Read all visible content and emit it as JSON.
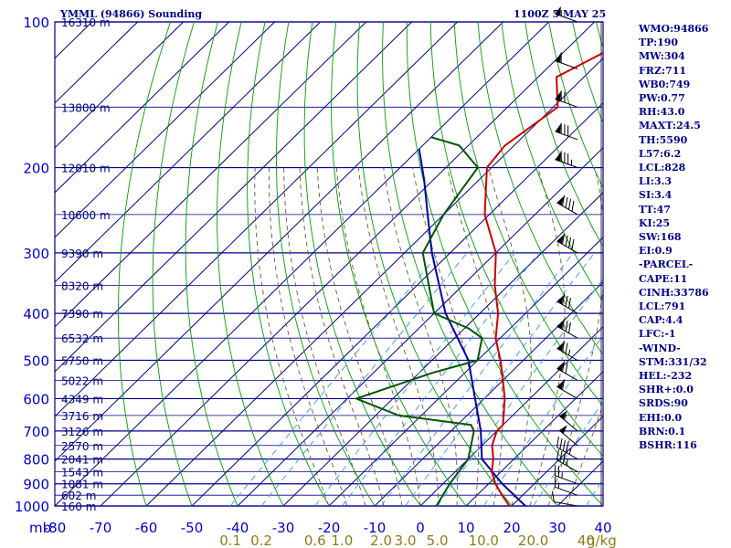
{
  "header": {
    "station": "YMML (94866) Sounding",
    "time": "1100Z  5 MAY 25"
  },
  "indices": [
    "WMO:94866",
    "TP:190",
    "MW:304",
    "FRZ:711",
    "WB0:749",
    "PW:0.77",
    "RH:43.0",
    "MAXT:24.5",
    "TH:5590",
    "L57:6.2",
    "LCL:828",
    "LI:3.3",
    "SI:3.4",
    "TT:47",
    "KI:25",
    "SW:168",
    "EI:0.9",
    "-PARCEL-",
    "CAPE:11",
    "CINH:33786",
    "LCL:791",
    "CAP:4.4",
    "LFC:-1",
    "-WIND-",
    "STM:331/32",
    "HEL:-232",
    "SHR+:0.0",
    "SRDS:90",
    "EHI:0.0",
    "BRN:0.1",
    "BSHR:116"
  ],
  "colors": {
    "grid": "#00008b",
    "dry_adiabat": "#00a000",
    "moist_adiabat": "#6b5a2a",
    "mixing_ratio": "#3399dd",
    "temperature": "#cc0000",
    "dewpoint": "#005500",
    "parcel": "#0000aa",
    "wind_barb": "#000000"
  },
  "chart_data": {
    "type": "skew-t log-p sounding",
    "pressure_unit_label": "mb",
    "pressure_levels": [
      100,
      200,
      300,
      400,
      500,
      600,
      700,
      800,
      900,
      1000
    ],
    "pressure_ticks": [
      "100",
      "200",
      "300",
      "400",
      "500",
      "600",
      "700",
      "800",
      "900",
      "1000"
    ],
    "pressure_range_mb": [
      100,
      1000
    ],
    "temperature_ticks": [
      "-80",
      "-70",
      "-60",
      "-50",
      "-40",
      "-30",
      "-20",
      "-10",
      "0",
      "10",
      "20",
      "30",
      "40"
    ],
    "temperature_values": [
      -80,
      -70,
      -60,
      -50,
      -40,
      -30,
      -20,
      -10,
      0,
      10,
      20,
      30,
      40
    ],
    "temperature_range_c": [
      -80,
      40
    ],
    "height_labels": [
      {
        "p": 100,
        "label": "16310 m"
      },
      {
        "p": 150,
        "label": "13800 m"
      },
      {
        "p": 200,
        "label": "12010 m"
      },
      {
        "p": 250,
        "label": "10600 m"
      },
      {
        "p": 300,
        "label": "9390 m"
      },
      {
        "p": 350,
        "label": "8320 m"
      },
      {
        "p": 400,
        "label": "7390 m"
      },
      {
        "p": 450,
        "label": "6532 m"
      },
      {
        "p": 500,
        "label": "5750 m"
      },
      {
        "p": 550,
        "label": "5022 m"
      },
      {
        "p": 600,
        "label": "4349 m"
      },
      {
        "p": 650,
        "label": "3716 m"
      },
      {
        "p": 700,
        "label": "3126 m"
      },
      {
        "p": 750,
        "label": "2570 m"
      },
      {
        "p": 800,
        "label": "2041 m"
      },
      {
        "p": 850,
        "label": "1543 m"
      },
      {
        "p": 900,
        "label": "1081 m"
      },
      {
        "p": 950,
        "label": "602 m"
      },
      {
        "p": 1000,
        "label": "160 m"
      }
    ],
    "mixing_ratio_labels": [
      "0.1",
      "0.2",
      "0.6",
      "1.0",
      "2.0",
      "3.0",
      "5.0",
      "10.0",
      "20.0",
      "40"
    ],
    "mixing_ratio_unit": "g/kg",
    "temperature_profile": [
      {
        "p": 1000,
        "t": 19.5
      },
      {
        "p": 950,
        "t": 15.5
      },
      {
        "p": 900,
        "t": 11.5
      },
      {
        "p": 850,
        "t": 8.0
      },
      {
        "p": 800,
        "t": 5.5
      },
      {
        "p": 750,
        "t": 2.2
      },
      {
        "p": 700,
        "t": 0.0
      },
      {
        "p": 680,
        "t": 0.0
      },
      {
        "p": 650,
        "t": -2.0
      },
      {
        "p": 600,
        "t": -5.5
      },
      {
        "p": 550,
        "t": -10.0
      },
      {
        "p": 500,
        "t": -15.0
      },
      {
        "p": 450,
        "t": -21.0
      },
      {
        "p": 400,
        "t": -26.0
      },
      {
        "p": 350,
        "t": -33.0
      },
      {
        "p": 300,
        "t": -40.0
      },
      {
        "p": 250,
        "t": -51.0
      },
      {
        "p": 200,
        "t": -61.0
      },
      {
        "p": 180,
        "t": -62.0
      },
      {
        "p": 150,
        "t": -59.0
      },
      {
        "p": 130,
        "t": -66.0
      },
      {
        "p": 110,
        "t": -59.0
      },
      {
        "p": 100,
        "t": -58.5
      }
    ],
    "dewpoint_profile": [
      {
        "p": 1000,
        "t": 3.5
      },
      {
        "p": 900,
        "t": 1.5
      },
      {
        "p": 800,
        "t": 0.0
      },
      {
        "p": 700,
        "t": -5.0
      },
      {
        "p": 680,
        "t": -7.0
      },
      {
        "p": 650,
        "t": -25.0
      },
      {
        "p": 600,
        "t": -38.0
      },
      {
        "p": 530,
        "t": -27.0
      },
      {
        "p": 500,
        "t": -20.0
      },
      {
        "p": 450,
        "t": -24.0
      },
      {
        "p": 430,
        "t": -29.0
      },
      {
        "p": 400,
        "t": -40.0
      },
      {
        "p": 300,
        "t": -56.0
      },
      {
        "p": 250,
        "t": -60.0
      },
      {
        "p": 200,
        "t": -63.0
      },
      {
        "p": 180,
        "t": -72.0
      },
      {
        "p": 173,
        "t": -80.0
      }
    ],
    "parcel_profile": [
      {
        "p": 1000,
        "t": 23.0
      },
      {
        "p": 900,
        "t": 13.0
      },
      {
        "p": 800,
        "t": 3.0
      },
      {
        "p": 700,
        "t": -3.5
      },
      {
        "p": 600,
        "t": -12.0
      },
      {
        "p": 500,
        "t": -22.0
      },
      {
        "p": 400,
        "t": -37.5
      },
      {
        "p": 300,
        "t": -54.0
      },
      {
        "p": 250,
        "t": -63.5
      },
      {
        "p": 212,
        "t": -72.0
      },
      {
        "p": 183,
        "t": -80.0
      }
    ],
    "wind_barbs_kt": [
      {
        "p": 1000,
        "dir": 280,
        "spd": 10
      },
      {
        "p": 950,
        "dir": 290,
        "spd": 15
      },
      {
        "p": 900,
        "dir": 290,
        "spd": 25
      },
      {
        "p": 850,
        "dir": 300,
        "spd": 35
      },
      {
        "p": 800,
        "dir": 300,
        "spd": 45
      },
      {
        "p": 750,
        "dir": 310,
        "spd": 50
      },
      {
        "p": 700,
        "dir": 310,
        "spd": 55
      },
      {
        "p": 600,
        "dir": 300,
        "spd": 60
      },
      {
        "p": 550,
        "dir": 300,
        "spd": 70
      },
      {
        "p": 500,
        "dir": 300,
        "spd": 75
      },
      {
        "p": 450,
        "dir": 300,
        "spd": 80
      },
      {
        "p": 400,
        "dir": 300,
        "spd": 80
      },
      {
        "p": 300,
        "dir": 300,
        "spd": 90
      },
      {
        "p": 250,
        "dir": 300,
        "spd": 90
      },
      {
        "p": 200,
        "dir": 290,
        "spd": 85
      },
      {
        "p": 175,
        "dir": 290,
        "spd": 80
      },
      {
        "p": 150,
        "dir": 290,
        "spd": 70
      },
      {
        "p": 125,
        "dir": 290,
        "spd": 60
      },
      {
        "p": 100,
        "dir": 290,
        "spd": 55
      }
    ]
  }
}
